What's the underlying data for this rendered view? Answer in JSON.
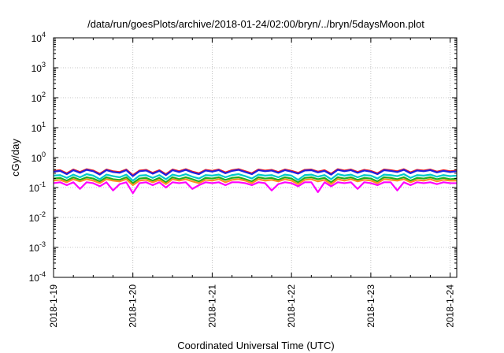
{
  "chart_data": {
    "type": "line",
    "title": "/data/run/goesPlots/archive/2018-01-24/02:00/bryn/../bryn/5daysMoon.plot",
    "xlabel": "Coordinated Universal Time (UTC)",
    "ylabel": "cGy/day",
    "yscale": "log",
    "ylim": [
      0.0001,
      10000
    ],
    "xlim": [
      "2018-01-19T00:00",
      "2018-01-24T02:00"
    ],
    "grid": true,
    "x_ticks": [
      "2018-1-19",
      "2018-1-20",
      "2018-1-21",
      "2018-1-22",
      "2018-1-23",
      "2018-1-24"
    ],
    "y_ticks": [
      {
        "base": "10",
        "exp": "-4",
        "value": 0.0001
      },
      {
        "base": "10",
        "exp": "-3",
        "value": 0.001
      },
      {
        "base": "10",
        "exp": "-2",
        "value": 0.01
      },
      {
        "base": "10",
        "exp": "-1",
        "value": 0.1
      },
      {
        "base": "10",
        "exp": "0",
        "value": 1
      },
      {
        "base": "10",
        "exp": "1",
        "value": 10
      },
      {
        "base": "10",
        "exp": "2",
        "value": 100
      },
      {
        "base": "10",
        "exp": "3",
        "value": 1000
      },
      {
        "base": "10",
        "exp": "4",
        "value": 10000
      }
    ],
    "x": [
      "2018-01-19T00:00",
      "2018-01-19T02:00",
      "2018-01-19T04:00",
      "2018-01-19T06:00",
      "2018-01-19T08:00",
      "2018-01-19T10:00",
      "2018-01-19T12:00",
      "2018-01-19T14:00",
      "2018-01-19T16:00",
      "2018-01-19T18:00",
      "2018-01-19T20:00",
      "2018-01-19T22:00",
      "2018-01-20T00:00",
      "2018-01-20T02:00",
      "2018-01-20T04:00",
      "2018-01-20T06:00",
      "2018-01-20T08:00",
      "2018-01-20T10:00",
      "2018-01-20T12:00",
      "2018-01-20T14:00",
      "2018-01-20T16:00",
      "2018-01-20T18:00",
      "2018-01-20T20:00",
      "2018-01-20T22:00",
      "2018-01-21T00:00",
      "2018-01-21T02:00",
      "2018-01-21T04:00",
      "2018-01-21T06:00",
      "2018-01-21T08:00",
      "2018-01-21T10:00",
      "2018-01-21T12:00",
      "2018-01-21T14:00",
      "2018-01-21T16:00",
      "2018-01-21T18:00",
      "2018-01-21T20:00",
      "2018-01-21T22:00",
      "2018-01-22T00:00",
      "2018-01-22T02:00",
      "2018-01-22T04:00",
      "2018-01-22T06:00",
      "2018-01-22T08:00",
      "2018-01-22T10:00",
      "2018-01-22T12:00",
      "2018-01-22T14:00",
      "2018-01-22T16:00",
      "2018-01-22T18:00",
      "2018-01-22T20:00",
      "2018-01-22T22:00",
      "2018-01-23T00:00",
      "2018-01-23T02:00",
      "2018-01-23T04:00",
      "2018-01-23T06:00",
      "2018-01-23T08:00",
      "2018-01-23T10:00",
      "2018-01-23T12:00",
      "2018-01-23T14:00",
      "2018-01-23T16:00",
      "2018-01-23T18:00",
      "2018-01-23T20:00",
      "2018-01-23T22:00",
      "2018-01-24T00:00",
      "2018-01-24T02:00"
    ],
    "series": [
      {
        "color": "#ff2020",
        "values": [
          0.36,
          0.38,
          0.3,
          0.4,
          0.33,
          0.41,
          0.37,
          0.29,
          0.4,
          0.35,
          0.33,
          0.4,
          0.26,
          0.37,
          0.39,
          0.31,
          0.38,
          0.28,
          0.4,
          0.35,
          0.41,
          0.34,
          0.3,
          0.39,
          0.36,
          0.4,
          0.32,
          0.38,
          0.41,
          0.35,
          0.3,
          0.4,
          0.37,
          0.39,
          0.33,
          0.4,
          0.36,
          0.31,
          0.39,
          0.4,
          0.34,
          0.38,
          0.29,
          0.41,
          0.37,
          0.4,
          0.33,
          0.39,
          0.36,
          0.3,
          0.4,
          0.38,
          0.35,
          0.41,
          0.32,
          0.39,
          0.37,
          0.4,
          0.34,
          0.38,
          0.35,
          0.37
        ]
      },
      {
        "color": "#2020e0",
        "values": [
          0.34,
          0.36,
          0.28,
          0.38,
          0.31,
          0.39,
          0.35,
          0.27,
          0.38,
          0.33,
          0.31,
          0.38,
          0.24,
          0.35,
          0.37,
          0.29,
          0.36,
          0.26,
          0.38,
          0.33,
          0.39,
          0.32,
          0.28,
          0.37,
          0.34,
          0.38,
          0.3,
          0.36,
          0.39,
          0.33,
          0.28,
          0.38,
          0.35,
          0.37,
          0.31,
          0.38,
          0.34,
          0.29,
          0.37,
          0.38,
          0.32,
          0.36,
          0.27,
          0.39,
          0.35,
          0.38,
          0.31,
          0.37,
          0.34,
          0.28,
          0.38,
          0.36,
          0.33,
          0.39,
          0.3,
          0.37,
          0.35,
          0.38,
          0.32,
          0.36,
          0.33,
          0.35
        ]
      },
      {
        "color": "#00c8c8",
        "values": [
          0.25,
          0.26,
          0.21,
          0.27,
          0.22,
          0.28,
          0.25,
          0.19,
          0.27,
          0.24,
          0.22,
          0.27,
          0.17,
          0.25,
          0.26,
          0.21,
          0.26,
          0.19,
          0.27,
          0.24,
          0.28,
          0.23,
          0.2,
          0.26,
          0.25,
          0.27,
          0.22,
          0.26,
          0.28,
          0.24,
          0.2,
          0.27,
          0.25,
          0.26,
          0.22,
          0.27,
          0.25,
          0.18,
          0.26,
          0.27,
          0.23,
          0.26,
          0.19,
          0.28,
          0.25,
          0.27,
          0.22,
          0.26,
          0.25,
          0.2,
          0.27,
          0.26,
          0.24,
          0.28,
          0.21,
          0.26,
          0.25,
          0.27,
          0.23,
          0.26,
          0.24,
          0.25
        ]
      },
      {
        "color": "#20b020",
        "values": [
          0.2,
          0.21,
          0.17,
          0.22,
          0.18,
          0.22,
          0.2,
          0.16,
          0.22,
          0.19,
          0.18,
          0.22,
          0.14,
          0.2,
          0.21,
          0.17,
          0.21,
          0.15,
          0.22,
          0.19,
          0.22,
          0.19,
          0.16,
          0.21,
          0.2,
          0.22,
          0.18,
          0.21,
          0.22,
          0.19,
          0.16,
          0.22,
          0.2,
          0.21,
          0.18,
          0.22,
          0.2,
          0.15,
          0.21,
          0.22,
          0.19,
          0.21,
          0.15,
          0.22,
          0.2,
          0.22,
          0.18,
          0.21,
          0.2,
          0.16,
          0.22,
          0.21,
          0.19,
          0.22,
          0.17,
          0.21,
          0.2,
          0.22,
          0.19,
          0.21,
          0.19,
          0.2
        ]
      },
      {
        "color": "#ff9020",
        "values": [
          0.17,
          0.18,
          0.15,
          0.19,
          0.16,
          0.19,
          0.17,
          0.14,
          0.19,
          0.17,
          0.16,
          0.19,
          0.12,
          0.17,
          0.18,
          0.15,
          0.18,
          0.13,
          0.19,
          0.17,
          0.19,
          0.16,
          0.14,
          0.18,
          0.17,
          0.19,
          0.15,
          0.18,
          0.19,
          0.17,
          0.14,
          0.19,
          0.17,
          0.18,
          0.16,
          0.19,
          0.17,
          0.13,
          0.18,
          0.19,
          0.16,
          0.18,
          0.13,
          0.19,
          0.17,
          0.19,
          0.16,
          0.18,
          0.17,
          0.14,
          0.19,
          0.18,
          0.17,
          0.19,
          0.15,
          0.18,
          0.17,
          0.19,
          0.16,
          0.18,
          0.17,
          0.17
        ]
      },
      {
        "color": "#ff00ff",
        "values": [
          0.14,
          0.15,
          0.12,
          0.15,
          0.09,
          0.15,
          0.14,
          0.11,
          0.15,
          0.08,
          0.13,
          0.15,
          0.065,
          0.14,
          0.15,
          0.12,
          0.15,
          0.1,
          0.15,
          0.14,
          0.15,
          0.09,
          0.12,
          0.15,
          0.14,
          0.15,
          0.12,
          0.15,
          0.15,
          0.14,
          0.12,
          0.15,
          0.14,
          0.08,
          0.13,
          0.15,
          0.14,
          0.11,
          0.15,
          0.15,
          0.07,
          0.15,
          0.11,
          0.15,
          0.14,
          0.15,
          0.09,
          0.15,
          0.14,
          0.12,
          0.15,
          0.15,
          0.08,
          0.15,
          0.12,
          0.15,
          0.14,
          0.15,
          0.13,
          0.15,
          0.14,
          0.14
        ]
      }
    ]
  }
}
